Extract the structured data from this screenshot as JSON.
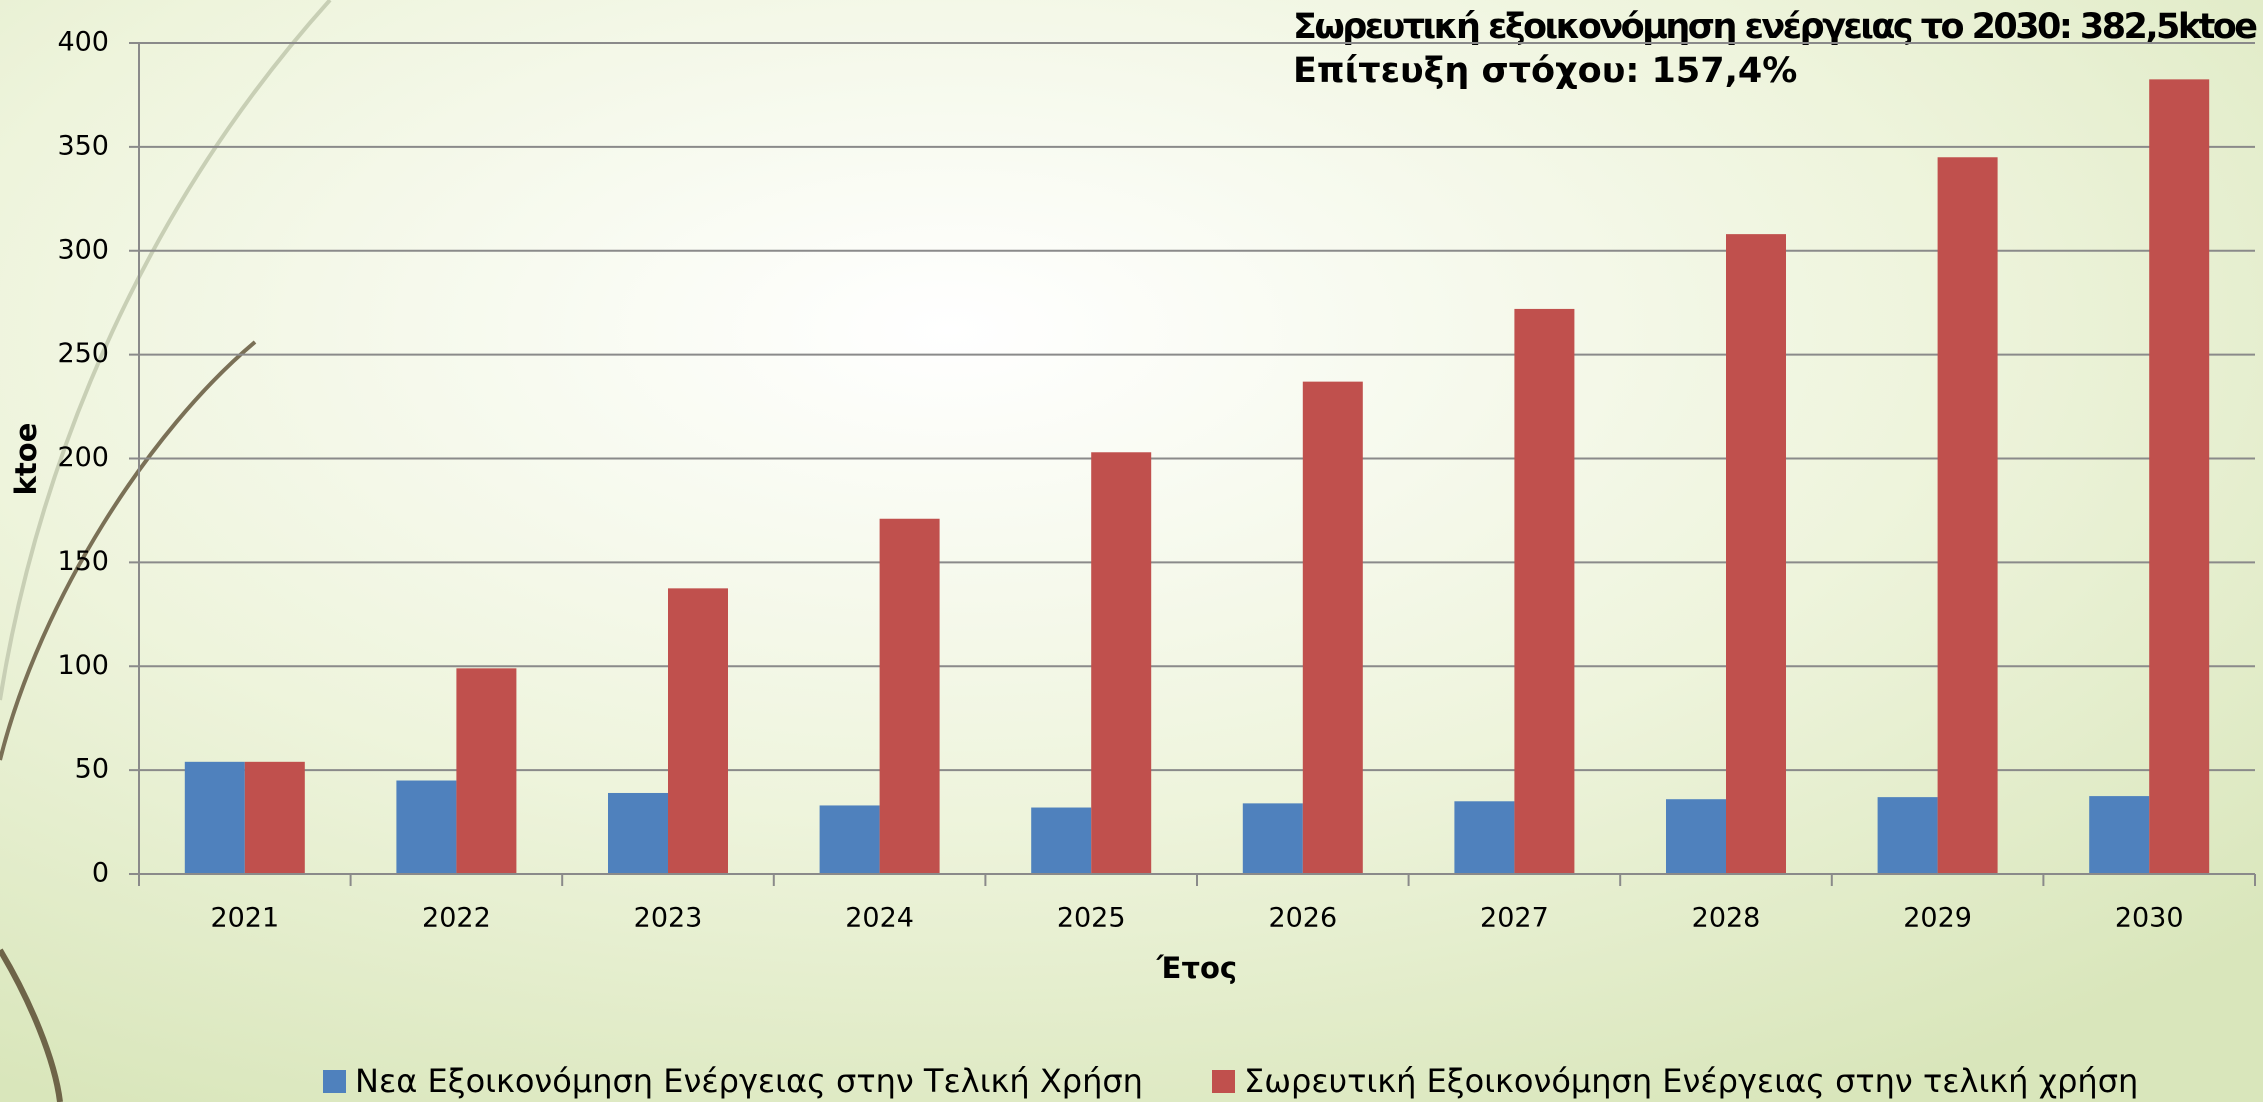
{
  "chart_data": {
    "type": "bar",
    "annotations": [
      "Σωρευτική εξοικονόμηση ενέργειας το 2030: 382,5ktoe",
      "Επίτευξη στόχου: 157,4%"
    ],
    "x_label": "Έτος",
    "y_label": "ktoe",
    "categories": [
      "2021",
      "2022",
      "2023",
      "2024",
      "2025",
      "2026",
      "2027",
      "2028",
      "2029",
      "2030"
    ],
    "series": [
      {
        "name": "Νεα Εξοικονόμηση Ενέργειας στην Τελική Χρήση",
        "color": "#4f81bd",
        "values": [
          54,
          45,
          39,
          33,
          32,
          34,
          35,
          36,
          37,
          37.5
        ]
      },
      {
        "name": "Σωρευτική Εξοικονόμηση Ενέργειας στην τελική χρήση",
        "color": "#c0504d",
        "values": [
          54,
          99,
          137.5,
          171,
          203,
          237,
          272,
          308,
          345,
          382.5
        ]
      }
    ],
    "ylim": [
      0,
      400
    ],
    "yticks": [
      0,
      50,
      100,
      150,
      200,
      250,
      300,
      350,
      400
    ],
    "grid": true,
    "legend": "bottom"
  }
}
